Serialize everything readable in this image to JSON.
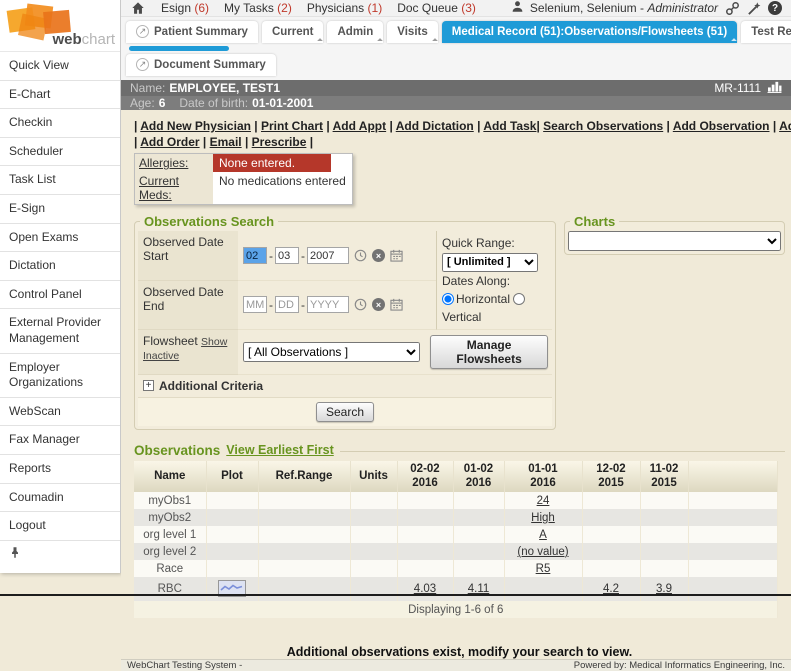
{
  "colors": {
    "tab_active": "#1f9bd7",
    "alert_red": "#b5372a",
    "section_green": "#68941f",
    "header_gray": "#6d6d6d"
  },
  "icons": {
    "popout": "↗",
    "help": "?",
    "clear": "×",
    "expand": "+"
  },
  "topbar": {
    "items": [
      {
        "label": "Esign",
        "count": "(6)"
      },
      {
        "label": "My Tasks",
        "count": "(2)"
      },
      {
        "label": "Physicians",
        "count": "(1)"
      },
      {
        "label": "Doc Queue",
        "count": "(3)"
      }
    ],
    "user_name": "Selenium, Selenium - ",
    "user_role": "Administrator"
  },
  "tabs": {
    "row1": [
      {
        "label": "Patient Summary",
        "popout": true,
        "active": false,
        "caret": false
      },
      {
        "label": "Current",
        "popout": false,
        "active": false,
        "caret": true
      },
      {
        "label": "Admin",
        "popout": false,
        "active": false,
        "caret": true
      },
      {
        "label": "Visits",
        "popout": false,
        "active": false,
        "caret": true
      },
      {
        "label": "Medical Record (51):Observations/Flowsheets (51)",
        "popout": false,
        "active": true,
        "caret": true
      },
      {
        "label": "Test Results",
        "popout": false,
        "active": false,
        "caret": true
      }
    ],
    "row2": [
      {
        "label": "Document Summary",
        "popout": true,
        "active": false,
        "caret": false
      }
    ]
  },
  "patient": {
    "name_label": "Name:",
    "name": "EMPLOYEE, TEST1",
    "mr": "MR-1111",
    "age_label": "Age:",
    "age": "6",
    "dob_label": "Date of birth:",
    "dob": "01-01-2001"
  },
  "actions": {
    "row1_left": [
      "Add New Physician",
      "Print Chart",
      "Add Appt",
      "Add Dictation",
      "Add Task"
    ],
    "row1_right": [
      "Search Observations",
      "Add Observation",
      "Add Document"
    ],
    "row2_left": [
      "Add Order",
      "Email",
      "Prescribe"
    ]
  },
  "alerts": {
    "allergies_label": "Allergies:",
    "allergies_value": "None entered.",
    "meds_label": "Current Meds:",
    "meds_value": "No medications entered"
  },
  "search_panel": {
    "title": "Observations Search",
    "date_start_label": "Observed Date Start",
    "date_end_label": "Observed Date End",
    "date_sep": "-",
    "start_mm": "02",
    "start_dd": "03",
    "start_yyyy": "2007",
    "end_mm_placeholder": "MM",
    "end_dd_placeholder": "DD",
    "end_yyyy_placeholder": "YYYY",
    "quick_range_label": "Quick Range:",
    "quick_range_value": "[ Unlimited ]",
    "dates_along_label": "Dates Along:",
    "radio_horizontal": "Horizontal",
    "radio_vertical": "Vertical",
    "dates_along_selected": "Horizontal",
    "flowsheet_label": "Flowsheet",
    "show_inactive_link": "Show Inactive",
    "flowsheet_value": "[ All Observations ]",
    "manage_button": "Manage Flowsheets",
    "additional_criteria": "Additional Criteria",
    "search_button": "Search"
  },
  "charts_panel": {
    "title": "Charts"
  },
  "observations": {
    "title": "Observations",
    "sort_link": "View Earliest First",
    "columns": [
      {
        "label": "Name"
      },
      {
        "label": "Plot"
      },
      {
        "label": "Ref.Range"
      },
      {
        "label": "Units"
      },
      {
        "label": "02-02",
        "sub": "2016"
      },
      {
        "label": "01-02",
        "sub": "2016"
      },
      {
        "label": "01-01",
        "sub": "2016"
      },
      {
        "label": "12-02",
        "sub": "2015"
      },
      {
        "label": "11-02",
        "sub": "2015"
      }
    ],
    "rows": [
      {
        "name": "myObs1",
        "plot": false,
        "ref_range": "",
        "units": "",
        "values": [
          "",
          "",
          "24",
          "",
          ""
        ]
      },
      {
        "name": "myObs2",
        "plot": false,
        "ref_range": "",
        "units": "",
        "values": [
          "",
          "",
          "High",
          "",
          ""
        ]
      },
      {
        "name": "org level 1",
        "plot": false,
        "ref_range": "",
        "units": "",
        "values": [
          "",
          "",
          "A",
          "",
          ""
        ]
      },
      {
        "name": "org level 2",
        "plot": false,
        "ref_range": "",
        "units": "",
        "values": [
          "",
          "",
          "(no value)",
          "",
          ""
        ]
      },
      {
        "name": "Race",
        "plot": false,
        "ref_range": "",
        "units": "",
        "values": [
          "",
          "",
          "R5",
          "",
          ""
        ]
      },
      {
        "name": "RBC",
        "plot": true,
        "ref_range": "",
        "units": "",
        "values": [
          "4.03",
          "4.11",
          "",
          "4.2",
          "3.9"
        ]
      }
    ],
    "displaying": "Displaying 1-6 of 6",
    "notice": "Additional observations exist, modify your search to view."
  },
  "sidebar": {
    "logo_web": "web",
    "logo_chart": "chart",
    "items": [
      "Quick View",
      "E-Chart",
      "Checkin",
      "Scheduler",
      "Task List",
      "E-Sign",
      "Open Exams",
      "Dictation",
      "Control Panel",
      "External Provider Management",
      "Employer Organizations",
      "WebScan",
      "Fax Manager",
      "Reports",
      "Coumadin",
      "Logout"
    ]
  },
  "footer": {
    "left": "WebChart Testing System -",
    "right": "Powered by: Medical Informatics Engineering, Inc."
  }
}
